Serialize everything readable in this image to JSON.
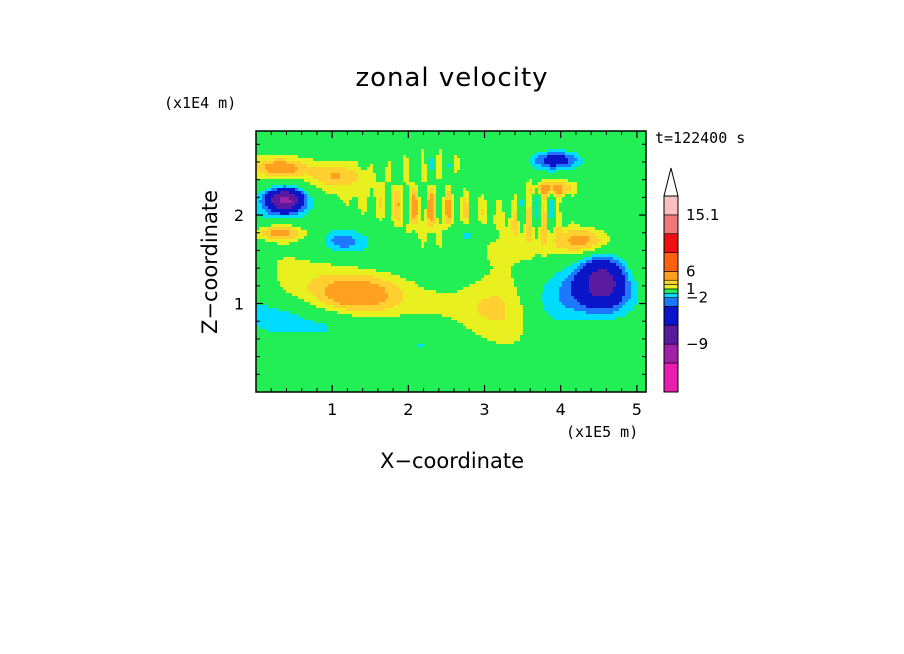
{
  "chart_data": {
    "type": "heatmap",
    "title": "zonal velocity",
    "xlabel": "X−coordinate",
    "ylabel": "Z−coordinate",
    "x_scale_label": "(x1E5 m)",
    "y_scale_label": "(x1E4 m)",
    "time_label": "t=122400 s",
    "xlim": [
      0,
      5.12
    ],
    "ylim": [
      0,
      2.95
    ],
    "x_ticks": [
      1,
      2,
      3,
      4,
      5
    ],
    "x_tick_labels": [
      "1",
      "2",
      "3",
      "4",
      "5"
    ],
    "y_ticks": [
      1,
      2
    ],
    "y_tick_labels": [
      "1",
      "2"
    ],
    "colorbar": {
      "min": -15.1,
      "max": 15.1,
      "levels": [
        -15.1,
        -12,
        -9,
        -6,
        -3,
        -2,
        -1,
        1,
        2,
        3,
        6,
        9,
        12,
        15.1
      ],
      "labels": [
        {
          "value": 15.1,
          "text": "15.1"
        },
        {
          "value": 6,
          "text": "6"
        },
        {
          "value": 1,
          "text": "1"
        },
        {
          "value": -2,
          "text": "−2"
        },
        {
          "value": -9,
          "text": "−9"
        }
      ],
      "colors": [
        "#e81eb0",
        "#a020a8",
        "#5a1aa0",
        "#0a14c8",
        "#1e78ff",
        "#00dcff",
        "#22ee55",
        "#e8f020",
        "#ffd030",
        "#ffa020",
        "#ff6010",
        "#ee1010",
        "#f07878",
        "#f8c0c0"
      ],
      "extend_max_color": "#ffffff"
    },
    "background_value": 0.5,
    "features": [
      {
        "x": 0.38,
        "z": 2.17,
        "sx": 0.22,
        "sz": 0.12,
        "value": -8,
        "name": "left-upper-jet-core"
      },
      {
        "x": 0.4,
        "z": 2.17,
        "sx": 0.38,
        "sz": 0.2,
        "value": -2.5,
        "name": "left-upper-jet"
      },
      {
        "x": 0.32,
        "z": 2.53,
        "sx": 0.3,
        "sz": 0.1,
        "value": 3.5,
        "name": "left-top-positive"
      },
      {
        "x": 0.32,
        "z": 1.8,
        "sx": 0.34,
        "sz": 0.1,
        "value": 4,
        "name": "left-mid-positive"
      },
      {
        "x": 1.05,
        "z": 2.45,
        "sx": 0.35,
        "sz": 0.14,
        "value": 2.2,
        "name": "upper-center-positive"
      },
      {
        "x": 1.15,
        "z": 1.7,
        "sx": 0.25,
        "sz": 0.12,
        "value": -2.3,
        "name": "mid-left-negative"
      },
      {
        "x": 1.3,
        "z": 1.1,
        "sx": 0.55,
        "sz": 0.22,
        "value": 3.2,
        "name": "mid-positive-blob"
      },
      {
        "x": 0.25,
        "z": 0.8,
        "sx": 0.35,
        "sz": 0.18,
        "value": -1.5,
        "name": "lower-left-green"
      },
      {
        "x": 0.9,
        "z": 0.75,
        "sx": 0.5,
        "sz": 0.2,
        "value": -1.2,
        "name": "lower-mid-green"
      },
      {
        "x": 2.2,
        "z": 0.55,
        "sx": 0.6,
        "sz": 0.25,
        "value": -1.3,
        "name": "lower-center-green"
      },
      {
        "x": 3.2,
        "z": 1.15,
        "sx": 0.5,
        "sz": 0.5,
        "value": 1.8,
        "name": "center-positive"
      },
      {
        "x": 3.9,
        "z": 0.9,
        "sx": 0.4,
        "sz": 0.35,
        "value": -1.6,
        "name": "right-lower-green"
      },
      {
        "x": 4.55,
        "z": 1.25,
        "sx": 0.3,
        "sz": 0.28,
        "value": -6,
        "name": "right-jet-core"
      },
      {
        "x": 4.5,
        "z": 1.3,
        "sx": 0.55,
        "sz": 0.45,
        "value": -2.2,
        "name": "right-jet"
      },
      {
        "x": 4.3,
        "z": 1.7,
        "sx": 0.35,
        "sz": 0.15,
        "value": 3,
        "name": "right-upper-positive"
      },
      {
        "x": 3.95,
        "z": 2.62,
        "sx": 0.35,
        "sz": 0.12,
        "value": -4.5,
        "name": "top-right-negative"
      },
      {
        "x": 3.9,
        "z": 2.3,
        "sx": 0.3,
        "sz": 0.1,
        "value": 3.8,
        "name": "right-top-positive"
      },
      {
        "x": 4.85,
        "z": 2.6,
        "sx": 0.3,
        "sz": 0.2,
        "value": -1.4,
        "name": "far-right-top-green"
      },
      {
        "x": 2.2,
        "z": 1.95,
        "sx": 0.4,
        "sz": 0.45,
        "value": 0.9,
        "name": "upper-wave-region"
      },
      {
        "x": 1.6,
        "z": 0.25,
        "sx": 1.2,
        "sz": 0.12,
        "value": -1.1,
        "name": "bottom-green-band"
      },
      {
        "x": 0.05,
        "z": 1.35,
        "sx": 0.2,
        "sz": 0.4,
        "value": -1.5,
        "name": "left-edge-green"
      },
      {
        "x": 2.85,
        "z": 1.8,
        "sx": 0.3,
        "sz": 0.12,
        "value": -2.5,
        "name": "center-negative"
      }
    ]
  }
}
